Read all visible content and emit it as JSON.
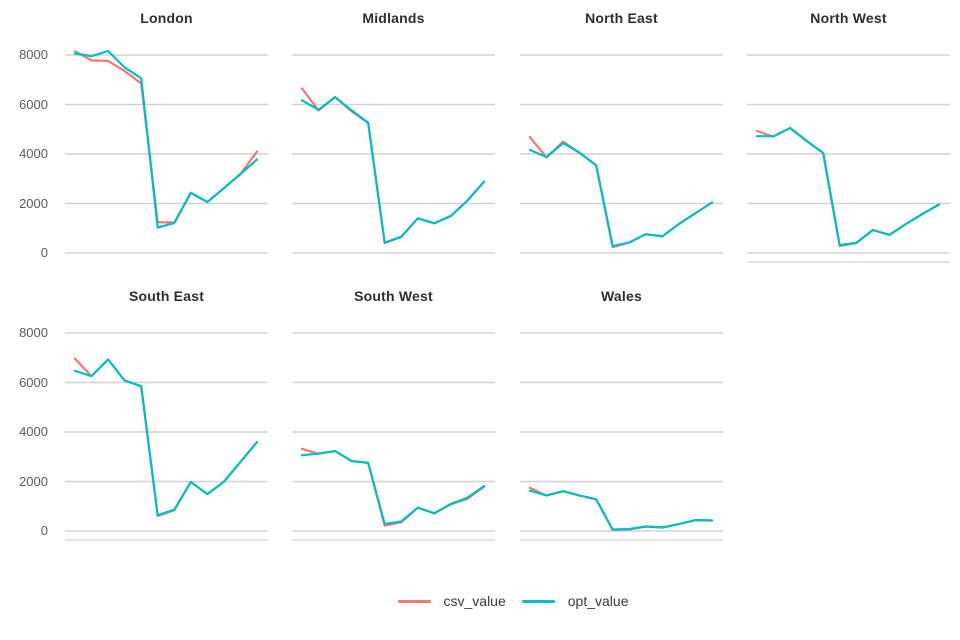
{
  "page": {
    "background": "#ffffff"
  },
  "legend": {
    "items": [
      {
        "label": "csv_value",
        "color": "#F8766D"
      },
      {
        "label": "opt_value",
        "color": "#00BFC4"
      }
    ]
  },
  "chart_data": {
    "type": "line",
    "title": "",
    "facet_variable_values": [
      "London",
      "Midlands",
      "North East",
      "North West",
      "South East",
      "South West",
      "Wales"
    ],
    "series_names": [
      "csv_value",
      "opt_value"
    ],
    "colors": {
      "csv_value": "#F8766D",
      "opt_value": "#00BFC4",
      "grid": "#d2d2d2",
      "axis_line": "#d8d8d8"
    },
    "x_points": 12,
    "x_tick_labels": [],
    "ylim": [
      0,
      8400
    ],
    "yticks": [
      8000,
      6000,
      4000,
      2000,
      0
    ],
    "ytick_labels": [
      "8000",
      "6000",
      "4000",
      "2000",
      "0"
    ],
    "grid": "horizontal-only",
    "legend_position": "bottom-center",
    "facets": [
      {
        "title": "London",
        "row": 0,
        "col": 0,
        "has_bottom_axis_line": false,
        "series": {
          "csv_value": [
            8150,
            7780,
            7760,
            7350,
            6850,
            1250,
            1230,
            2430,
            2060,
            2620,
            3190,
            4100
          ],
          "opt_value": [
            8060,
            7950,
            8160,
            7500,
            7060,
            1030,
            1210,
            2430,
            2060,
            2620,
            3190,
            3780
          ]
        }
      },
      {
        "title": "Midlands",
        "row": 0,
        "col": 1,
        "has_bottom_axis_line": false,
        "series": {
          "csv_value": [
            6650,
            5760,
            6300,
            5720,
            5250,
            400,
            650,
            1400,
            1200,
            1500,
            2120,
            2880
          ],
          "opt_value": [
            6170,
            5780,
            6300,
            5760,
            5260,
            420,
            660,
            1400,
            1200,
            1500,
            2120,
            2880
          ]
        }
      },
      {
        "title": "North East",
        "row": 0,
        "col": 2,
        "has_bottom_axis_line": false,
        "series": {
          "csv_value": [
            4680,
            3860,
            4500,
            4050,
            3540,
            240,
            420,
            760,
            670,
            1170,
            1610,
            2040
          ],
          "opt_value": [
            4160,
            3880,
            4440,
            4050,
            3540,
            280,
            430,
            760,
            670,
            1170,
            1610,
            2040
          ]
        }
      },
      {
        "title": "North West",
        "row": 0,
        "col": 3,
        "has_bottom_axis_line": true,
        "series": {
          "csv_value": [
            4930,
            4700,
            5050,
            4530,
            4040,
            280,
            400,
            930,
            730,
            1170,
            1580,
            1960
          ],
          "opt_value": [
            4720,
            4720,
            5050,
            4530,
            4040,
            320,
            410,
            930,
            730,
            1170,
            1580,
            1960
          ]
        }
      },
      {
        "title": "South East",
        "row": 1,
        "col": 0,
        "has_bottom_axis_line": true,
        "series": {
          "csv_value": [
            6960,
            6260,
            6930,
            6080,
            5850,
            610,
            840,
            1980,
            1490,
            1990,
            2790,
            3590
          ],
          "opt_value": [
            6470,
            6260,
            6930,
            6080,
            5850,
            640,
            860,
            1980,
            1490,
            1990,
            2790,
            3590
          ]
        }
      },
      {
        "title": "South West",
        "row": 1,
        "col": 1,
        "has_bottom_axis_line": true,
        "series": {
          "csv_value": [
            3320,
            3120,
            3230,
            2830,
            2750,
            220,
            350,
            940,
            710,
            1080,
            1300,
            1790
          ],
          "opt_value": [
            3060,
            3130,
            3230,
            2830,
            2750,
            280,
            390,
            940,
            720,
            1100,
            1350,
            1810
          ]
        }
      },
      {
        "title": "Wales",
        "row": 1,
        "col": 2,
        "has_bottom_axis_line": true,
        "series": {
          "csv_value": [
            1740,
            1430,
            1610,
            1430,
            1280,
            40,
            60,
            180,
            140,
            280,
            440,
            425
          ],
          "opt_value": [
            1630,
            1440,
            1610,
            1430,
            1280,
            60,
            80,
            180,
            140,
            280,
            440,
            425
          ]
        }
      }
    ]
  }
}
